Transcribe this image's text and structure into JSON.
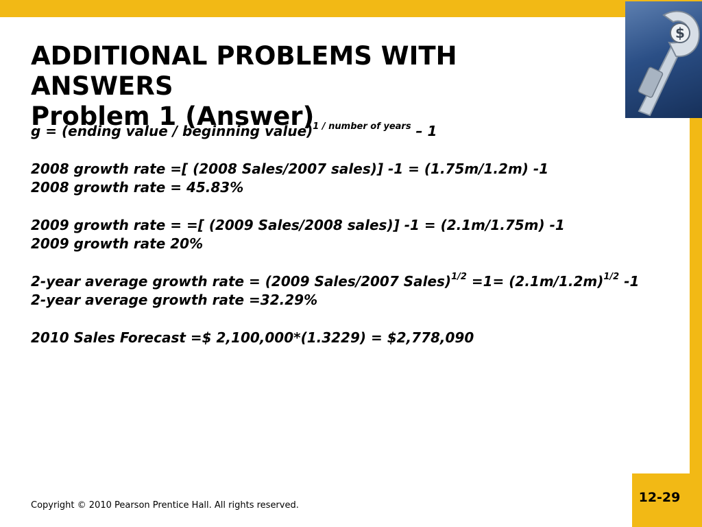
{
  "title": {
    "line1": "ADDITIONAL PROBLEMS WITH",
    "line2": "ANSWERS",
    "line3": "Problem 1  (Answer)"
  },
  "formula": {
    "prefix": "g = (ending value / beginning value)",
    "exponent": "1 / number of years",
    "suffix": " – 1"
  },
  "growth_2008": {
    "calc": "2008 growth rate =[ (2008 Sales/2007 sales)] -1 = (1.75m/1.2m) -1",
    "result": "2008 growth rate = 45.83%"
  },
  "growth_2009": {
    "calc": "2009 growth rate = =[ (2009 Sales/2008 sales)] -1 = (2.1m/1.75m) -1",
    "result": "2009 growth rate 20%"
  },
  "avg_growth": {
    "part1": "2-year average growth rate = (2009 Sales/2007 Sales)",
    "exp1": "1/2",
    "part2": " =1= (2.1m/1.2m)",
    "exp2": "1/2",
    "part3": " -1",
    "result": "2-year average growth rate =32.29%"
  },
  "forecast": "2010 Sales Forecast =$ 2,100,000*(1.3229) = $2,778,090",
  "footer": "Copyright © 2010 Pearson Prentice Hall. All rights reserved.",
  "slide_number": "12-29",
  "colors": {
    "accent": "#f2b915",
    "image_blue": "#2b4f86"
  },
  "corner_image_icon": "wrench-dollar-icon"
}
